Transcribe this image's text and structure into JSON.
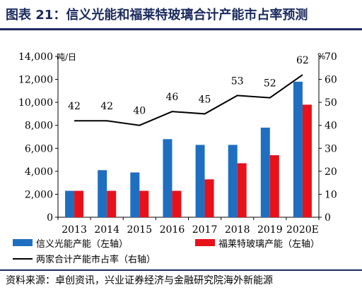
{
  "title": "图表 21：信义光能和福莱特玻璃合计产能市占率预测",
  "source": "资料来源：卓创资讯，兴业证券经济与金融研究院海外新能源",
  "chart_data": {
    "type": "bar",
    "categories": [
      "2013",
      "2014",
      "2015",
      "2016",
      "2017",
      "2018",
      "2019",
      "2020E"
    ],
    "series": [
      {
        "name": "信义光能产能（左轴）",
        "axis": "left",
        "kind": "bar",
        "color": "#1f6fc1",
        "values": [
          2300,
          4100,
          3900,
          6800,
          6300,
          6300,
          7800,
          11800
        ]
      },
      {
        "name": "福莱特玻璃产能（左轴）",
        "axis": "left",
        "kind": "bar",
        "color": "#e8111a",
        "values": [
          2300,
          2300,
          2300,
          2300,
          3300,
          4700,
          5400,
          9800
        ]
      },
      {
        "name": "两家合计产能市占率（右轴）",
        "axis": "right",
        "kind": "line",
        "color": "#000000",
        "values": [
          42,
          42,
          40,
          46,
          45,
          53,
          52,
          62
        ],
        "labels": [
          "42",
          "42",
          "40",
          "46",
          "45",
          "53",
          "52",
          "62"
        ]
      }
    ],
    "ylim_left": [
      0,
      14000
    ],
    "ylim_right": [
      0,
      70
    ],
    "left_ticks": [
      "0",
      "2,000",
      "4,000",
      "6,000",
      "8,000",
      "10,000",
      "12,000",
      "14,000"
    ],
    "right_ticks": [
      "0",
      "10",
      "20",
      "30",
      "40",
      "50",
      "60",
      "70"
    ],
    "left_unit": "吨/日",
    "right_unit": "%",
    "grid": false,
    "legend": "bottom"
  }
}
